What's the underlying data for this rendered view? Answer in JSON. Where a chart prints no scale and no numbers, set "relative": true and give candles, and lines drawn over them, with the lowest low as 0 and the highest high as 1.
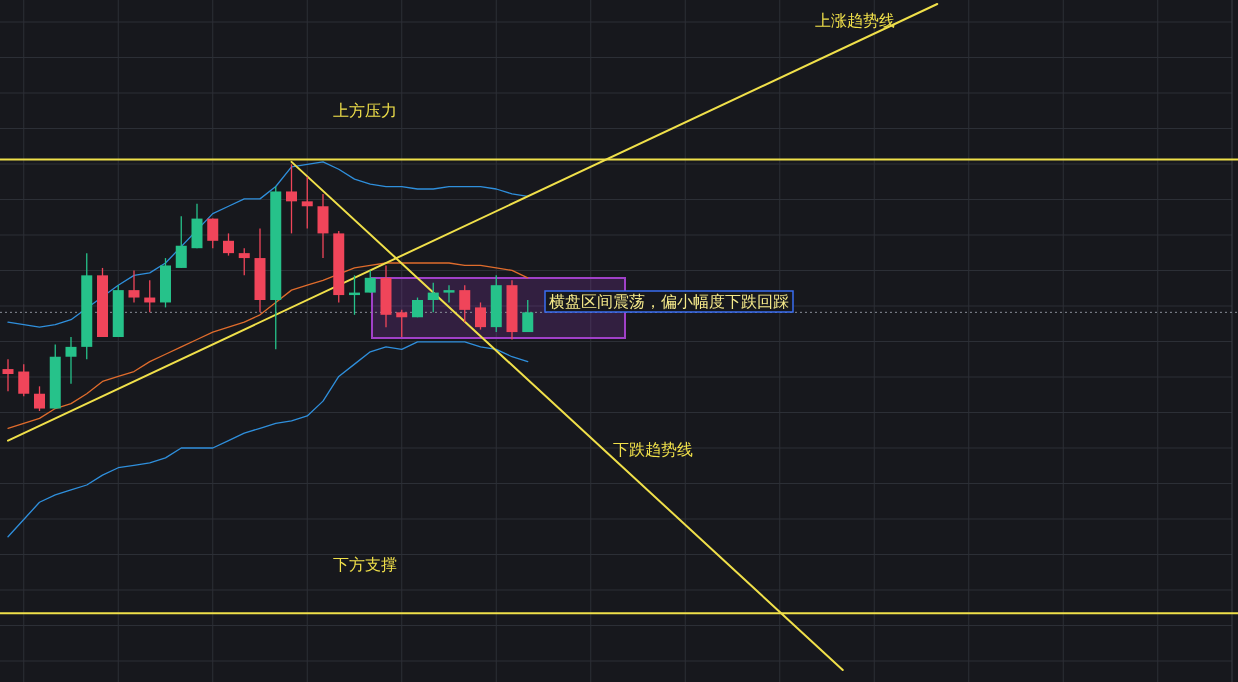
{
  "chart_data": {
    "type": "candlestick",
    "relative": true,
    "grid": true,
    "categories": [
      null,
      null,
      null,
      null,
      null,
      null,
      null,
      null,
      null,
      null,
      null,
      null,
      null,
      null,
      null,
      null,
      null,
      null,
      null,
      null,
      null,
      null,
      null,
      null,
      null,
      null,
      null,
      null,
      null,
      null,
      null,
      null,
      null,
      null,
      null,
      null,
      null,
      null,
      null,
      null,
      null,
      null,
      null,
      null,
      null,
      null,
      null,
      null,
      null,
      null,
      null,
      null,
      null,
      null,
      null,
      null,
      null,
      null,
      null,
      null
    ],
    "ohlc": [
      [
        0.17,
        0.21,
        0.08,
        0.15
      ],
      [
        0.16,
        0.19,
        0.06,
        0.07
      ],
      [
        0.07,
        0.1,
        0.0,
        0.01
      ],
      [
        0.01,
        0.27,
        0.01,
        0.22
      ],
      [
        0.22,
        0.3,
        0.11,
        0.26
      ],
      [
        0.26,
        0.64,
        0.21,
        0.55
      ],
      [
        0.55,
        0.58,
        0.3,
        0.3
      ],
      [
        0.3,
        0.51,
        0.3,
        0.49
      ],
      [
        0.49,
        0.57,
        0.44,
        0.46
      ],
      [
        0.46,
        0.53,
        0.4,
        0.44
      ],
      [
        0.44,
        0.62,
        0.42,
        0.59
      ],
      [
        0.58,
        0.79,
        0.58,
        0.67
      ],
      [
        0.66,
        0.84,
        0.66,
        0.78
      ],
      [
        0.78,
        0.78,
        0.66,
        0.69
      ],
      [
        0.69,
        0.72,
        0.63,
        0.64
      ],
      [
        0.64,
        0.66,
        0.55,
        0.62
      ],
      [
        0.62,
        0.74,
        0.4,
        0.45
      ],
      [
        0.45,
        0.91,
        0.25,
        0.89
      ],
      [
        0.89,
        1.0,
        0.72,
        0.85
      ],
      [
        0.85,
        0.95,
        0.74,
        0.83
      ],
      [
        0.83,
        0.88,
        0.62,
        0.72
      ],
      [
        0.72,
        0.73,
        0.44,
        0.47
      ],
      [
        0.47,
        0.55,
        0.39,
        0.48
      ],
      [
        0.48,
        0.57,
        0.48,
        0.54
      ],
      [
        0.54,
        0.59,
        0.34,
        0.39
      ],
      [
        0.4,
        0.41,
        0.3,
        0.38
      ],
      [
        0.38,
        0.46,
        0.38,
        0.45
      ],
      [
        0.45,
        0.52,
        0.4,
        0.48
      ],
      [
        0.48,
        0.51,
        0.44,
        0.49
      ],
      [
        0.49,
        0.51,
        0.36,
        0.41
      ],
      [
        0.42,
        0.44,
        0.33,
        0.34
      ],
      [
        0.34,
        0.55,
        0.32,
        0.51
      ],
      [
        0.51,
        0.53,
        0.29,
        0.32
      ],
      [
        0.32,
        0.45,
        0.32,
        0.4
      ],
      null,
      null,
      null,
      null,
      null,
      null,
      null,
      null,
      null,
      null,
      null,
      null,
      null,
      null,
      null,
      null,
      null,
      null,
      null,
      null,
      null,
      null,
      null,
      null,
      null,
      null
    ],
    "colors": [
      "#f0455a",
      "#f0455a",
      "#f0455a",
      "#26c28a",
      "#26c28a",
      "#26c28a",
      "#f0455a",
      "#26c28a",
      "#f0455a",
      "#f0455a",
      "#26c28a",
      "#26c28a",
      "#26c28a",
      "#f0455a",
      "#f0455a",
      "#f0455a",
      "#f0455a",
      "#26c28a",
      "#f0455a",
      "#f0455a",
      "#f0455a",
      "#f0455a",
      "#26c28a",
      "#26c28a",
      "#f0455a",
      "#f0455a",
      "#26c28a",
      "#26c28a",
      "#26c28a",
      "#f0455a",
      "#f0455a",
      "#26c28a",
      "#f0455a",
      "#26c28a",
      null,
      null,
      null,
      null,
      null,
      null,
      null,
      null,
      null,
      null,
      null,
      null,
      null,
      null,
      null,
      null,
      null,
      null,
      null,
      null,
      null,
      null,
      null,
      null,
      null,
      null
    ],
    "series": [
      {
        "type": "line",
        "color": "#2f8fdc",
        "values": [
          0.36,
          0.35,
          0.34,
          0.35,
          0.37,
          null,
          null,
          0.51,
          0.55,
          0.56,
          0.6,
          null,
          null,
          0.8,
          0.83,
          0.86,
          0.86,
          0.91,
          0.99,
          1.0,
          1.01,
          0.98,
          0.94,
          0.92,
          0.91,
          0.91,
          0.9,
          0.9,
          0.91,
          0.91,
          0.91,
          0.9,
          0.88,
          0.87,
          null,
          null,
          null,
          null,
          null,
          null,
          null,
          null,
          null,
          null,
          null,
          null,
          null,
          null,
          null,
          null,
          null,
          null,
          null,
          null,
          null,
          null,
          null,
          null,
          null,
          null
        ]
      },
      {
        "type": "line",
        "color": "#e06c2c",
        "values": [
          -0.07,
          -0.05,
          -0.03,
          0.01,
          0.03,
          0.07,
          0.12,
          0.14,
          0.16,
          0.2,
          0.23,
          0.26,
          0.29,
          0.32,
          0.34,
          0.36,
          0.39,
          0.44,
          0.49,
          0.51,
          0.53,
          null,
          0.58,
          0.59,
          0.6,
          0.6,
          0.6,
          0.6,
          0.6,
          0.59,
          0.59,
          0.58,
          0.57,
          0.54,
          null,
          null,
          null,
          null,
          null,
          null,
          null,
          null,
          null,
          null,
          null,
          null,
          null,
          null,
          null,
          null,
          null,
          null,
          null,
          null,
          null,
          null,
          null,
          null,
          null,
          null
        ]
      },
      {
        "type": "line",
        "color": "#2f8fdc",
        "values": [
          -0.51,
          -0.44,
          -0.37,
          -0.34,
          -0.32,
          -0.3,
          -0.26,
          -0.23,
          -0.22,
          -0.21,
          -0.19,
          -0.15,
          -0.15,
          -0.15,
          -0.12,
          -0.09,
          -0.07,
          -0.05,
          -0.04,
          -0.02,
          0.04,
          0.14,
          0.19,
          0.24,
          0.26,
          0.25,
          0.28,
          0.28,
          0.28,
          0.28,
          0.26,
          0.25,
          0.22,
          0.2,
          null,
          null,
          null,
          null,
          null,
          null,
          null,
          null,
          null,
          null,
          null,
          null,
          null,
          null,
          null,
          null,
          null,
          null,
          null,
          null,
          null,
          null,
          null,
          null,
          null,
          null
        ]
      },
      {
        "type": "line",
        "name": "上涨趋势线",
        "color": "#f0e04a",
        "values": [
          -0.12,
          null,
          null,
          null,
          null,
          null,
          null,
          null,
          null,
          null,
          null,
          null,
          null,
          null,
          null,
          null,
          null,
          null,
          null,
          null,
          null,
          null,
          null,
          null,
          null,
          null,
          null,
          null,
          null,
          null,
          null,
          null,
          null,
          null,
          null,
          null,
          null,
          null,
          null,
          null,
          null,
          null,
          null,
          null,
          null,
          null,
          null,
          null,
          null,
          null,
          null,
          null,
          null,
          null,
          null,
          null,
          null,
          null,
          null,
          1.65
        ]
      },
      {
        "type": "line",
        "name": "下跌趋势线",
        "color": "#f0e04a",
        "values": [
          null,
          null,
          null,
          null,
          null,
          null,
          null,
          null,
          null,
          null,
          null,
          null,
          null,
          null,
          null,
          null,
          null,
          null,
          1.01,
          null,
          null,
          null,
          null,
          null,
          null,
          null,
          null,
          null,
          null,
          null,
          null,
          null,
          null,
          null,
          null,
          null,
          null,
          null,
          null,
          null,
          null,
          null,
          null,
          null,
          null,
          null,
          null,
          null,
          null,
          null,
          null,
          null,
          null,
          -1.05,
          null,
          null,
          null,
          null,
          null,
          null
        ]
      }
    ],
    "ref_lines": [
      {
        "axis": "y",
        "value": 1.02,
        "label": "上方压力",
        "color": "#f0e04a"
      },
      {
        "axis": "y",
        "value": -0.82,
        "label": "下方支撑",
        "color": "#f0e04a"
      },
      {
        "axis": "y",
        "value": 0.4,
        "color": "#8a8f98",
        "line_style": "dotted"
      }
    ],
    "annotations": [
      "横盘区间震荡，偏小幅度下跌回踩"
    ]
  }
}
